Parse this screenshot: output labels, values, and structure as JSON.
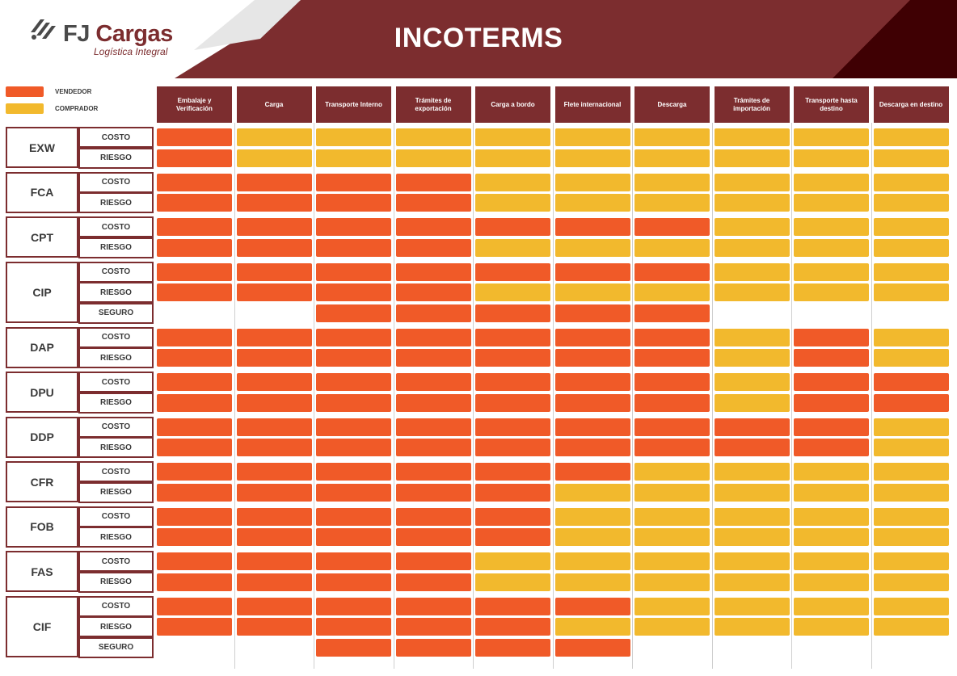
{
  "header": {
    "title": "INCOTERMS",
    "logo_brand_a": "FJ",
    "logo_brand_b": "Cargas",
    "logo_tagline": "Logística Integral"
  },
  "legend": [
    {
      "label": "VENDEDOR",
      "color": "#f05a28"
    },
    {
      "label": "COMPRADOR",
      "color": "#f2b92d"
    }
  ],
  "colors": {
    "accent": "#7c2d2f",
    "dark_accent": "#3f0003",
    "vendedor": "#f05a28",
    "comprador": "#f2b92d"
  },
  "columns": [
    "Embalaje y Verificación",
    "Carga",
    "Transporte Interno",
    "Trámites de exportación",
    "Carga a bordo",
    "Flete internacional",
    "Descarga",
    "Trámites de importación",
    "Transporte hasta destino",
    "Descarga en destino"
  ],
  "terms": [
    {
      "name": "EXW",
      "rows": [
        {
          "label": "COSTO",
          "cells": [
            "V",
            "C",
            "C",
            "C",
            "C",
            "C",
            "C",
            "C",
            "C",
            "C"
          ]
        },
        {
          "label": "RIESGO",
          "cells": [
            "V",
            "C",
            "C",
            "C",
            "C",
            "C",
            "C",
            "C",
            "C",
            "C"
          ]
        }
      ]
    },
    {
      "name": "FCA",
      "rows": [
        {
          "label": "COSTO",
          "cells": [
            "V",
            "V",
            "V",
            "V",
            "C",
            "C",
            "C",
            "C",
            "C",
            "C"
          ]
        },
        {
          "label": "RIESGO",
          "cells": [
            "V",
            "V",
            "V",
            "V",
            "C",
            "C",
            "C",
            "C",
            "C",
            "C"
          ]
        }
      ]
    },
    {
      "name": "CPT",
      "rows": [
        {
          "label": "COSTO",
          "cells": [
            "V",
            "V",
            "V",
            "V",
            "V",
            "V",
            "V",
            "C",
            "C",
            "C"
          ]
        },
        {
          "label": "RIESGO",
          "cells": [
            "V",
            "V",
            "V",
            "V",
            "C",
            "C",
            "C",
            "C",
            "C",
            "C"
          ]
        }
      ]
    },
    {
      "name": "CIP",
      "rows": [
        {
          "label": "COSTO",
          "cells": [
            "V",
            "V",
            "V",
            "V",
            "V",
            "V",
            "V",
            "C",
            "C",
            "C"
          ]
        },
        {
          "label": "RIESGO",
          "cells": [
            "V",
            "V",
            "V",
            "V",
            "C",
            "C",
            "C",
            "C",
            "C",
            "C"
          ]
        },
        {
          "label": "SEGURO",
          "cells": [
            "",
            "",
            "V",
            "V",
            "V",
            "V",
            "V",
            "",
            "",
            ""
          ]
        }
      ]
    },
    {
      "name": "DAP",
      "rows": [
        {
          "label": "COSTO",
          "cells": [
            "V",
            "V",
            "V",
            "V",
            "V",
            "V",
            "V",
            "C",
            "V",
            "C"
          ]
        },
        {
          "label": "RIESGO",
          "cells": [
            "V",
            "V",
            "V",
            "V",
            "V",
            "V",
            "V",
            "C",
            "V",
            "C"
          ]
        }
      ]
    },
    {
      "name": "DPU",
      "rows": [
        {
          "label": "COSTO",
          "cells": [
            "V",
            "V",
            "V",
            "V",
            "V",
            "V",
            "V",
            "C",
            "V",
            "V"
          ]
        },
        {
          "label": "RIESGO",
          "cells": [
            "V",
            "V",
            "V",
            "V",
            "V",
            "V",
            "V",
            "C",
            "V",
            "V"
          ]
        }
      ]
    },
    {
      "name": "DDP",
      "rows": [
        {
          "label": "COSTO",
          "cells": [
            "V",
            "V",
            "V",
            "V",
            "V",
            "V",
            "V",
            "V",
            "V",
            "C"
          ]
        },
        {
          "label": "RIESGO",
          "cells": [
            "V",
            "V",
            "V",
            "V",
            "V",
            "V",
            "V",
            "V",
            "V",
            "C"
          ]
        }
      ]
    },
    {
      "name": "CFR",
      "rows": [
        {
          "label": "COSTO",
          "cells": [
            "V",
            "V",
            "V",
            "V",
            "V",
            "V",
            "C",
            "C",
            "C",
            "C"
          ]
        },
        {
          "label": "RIESGO",
          "cells": [
            "V",
            "V",
            "V",
            "V",
            "V",
            "C",
            "C",
            "C",
            "C",
            "C"
          ]
        }
      ]
    },
    {
      "name": "FOB",
      "rows": [
        {
          "label": "COSTO",
          "cells": [
            "V",
            "V",
            "V",
            "V",
            "V",
            "C",
            "C",
            "C",
            "C",
            "C"
          ]
        },
        {
          "label": "RIESGO",
          "cells": [
            "V",
            "V",
            "V",
            "V",
            "V",
            "C",
            "C",
            "C",
            "C",
            "C"
          ]
        }
      ]
    },
    {
      "name": "FAS",
      "rows": [
        {
          "label": "COSTO",
          "cells": [
            "V",
            "V",
            "V",
            "V",
            "C",
            "C",
            "C",
            "C",
            "C",
            "C"
          ]
        },
        {
          "label": "RIESGO",
          "cells": [
            "V",
            "V",
            "V",
            "V",
            "C",
            "C",
            "C",
            "C",
            "C",
            "C"
          ]
        }
      ]
    },
    {
      "name": "CIF",
      "rows": [
        {
          "label": "COSTO",
          "cells": [
            "V",
            "V",
            "V",
            "V",
            "V",
            "V",
            "C",
            "C",
            "C",
            "C"
          ]
        },
        {
          "label": "RIESGO",
          "cells": [
            "V",
            "V",
            "V",
            "V",
            "V",
            "C",
            "C",
            "C",
            "C",
            "C"
          ]
        },
        {
          "label": "SEGURO",
          "cells": [
            "",
            "",
            "V",
            "V",
            "V",
            "V",
            "",
            "",
            "",
            ""
          ]
        }
      ]
    }
  ]
}
